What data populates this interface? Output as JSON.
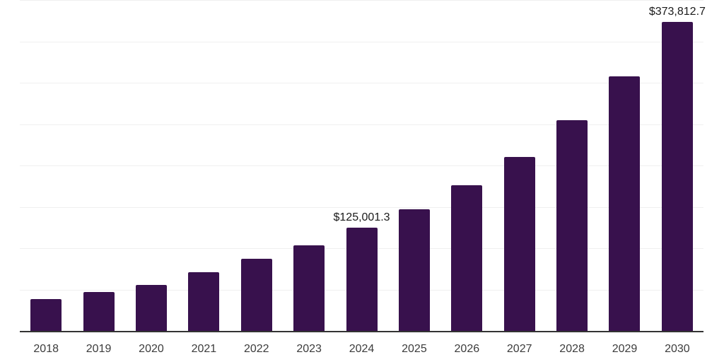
{
  "chart_data": {
    "type": "bar",
    "title": "",
    "xlabel": "",
    "ylabel": "",
    "categories": [
      "2018",
      "2019",
      "2020",
      "2021",
      "2022",
      "2023",
      "2024",
      "2025",
      "2026",
      "2027",
      "2028",
      "2029",
      "2030"
    ],
    "values": [
      38700,
      47000,
      55500,
      71000,
      87400,
      103700,
      125001.3,
      147000,
      175800,
      210500,
      254700,
      308000,
      373812.7
    ],
    "data_labels": {
      "2024": "$125,001.3",
      "2030": "$373,812.7"
    },
    "ylim": [
      0,
      400000
    ],
    "gridline_interval": 50000,
    "grid": "horizontal",
    "legend": "none",
    "bar_color": "#38114d",
    "axis_line_color": "#333333",
    "gridline_color": "#f0f0f0",
    "tick_label_color": "#3c3c3c",
    "value_label_color": "#1a1a1a",
    "background_color": "#ffffff"
  }
}
